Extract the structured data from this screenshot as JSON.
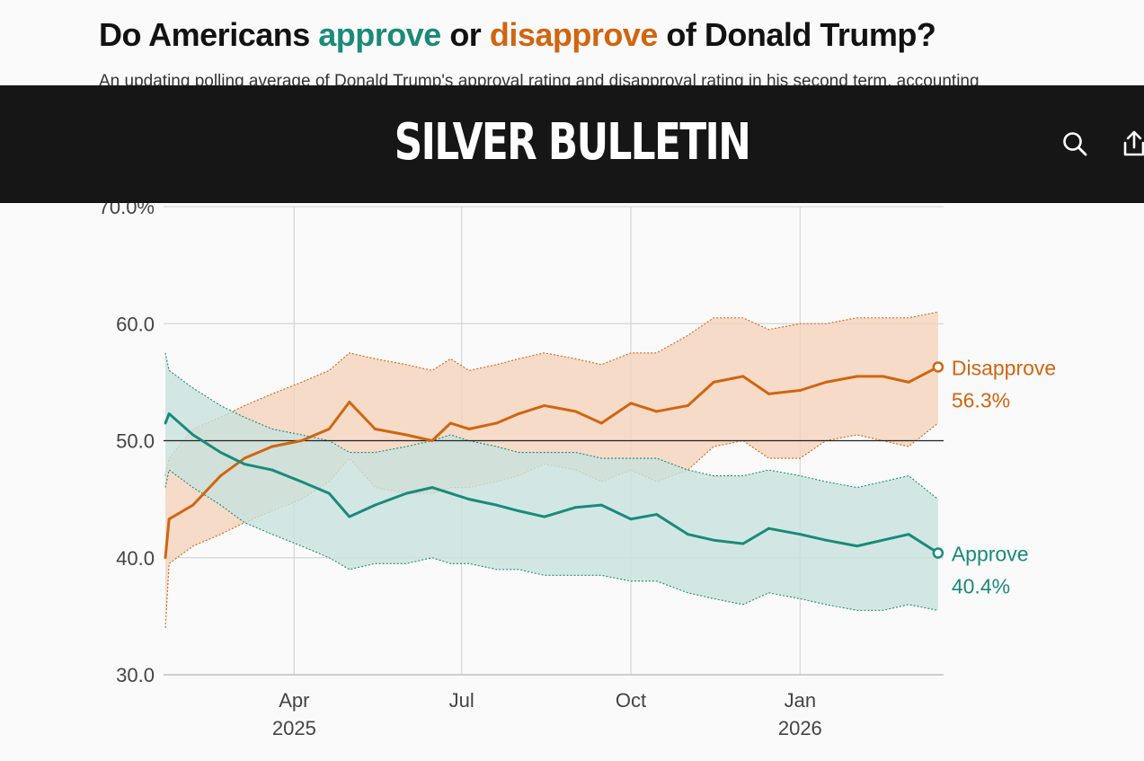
{
  "header": {
    "title_prefix": "Do Americans ",
    "title_approve": "approve",
    "title_mid": " or ",
    "title_disapprove": "disapprove",
    "title_suffix": " of Donald Trump?",
    "subtitle": "An updating polling average of Donald Trump's approval rating and disapproval rating in his second term, accounting"
  },
  "topbar": {
    "brand": "SILVER BULLETIN",
    "search_icon": "search-icon",
    "share_icon": "share-icon"
  },
  "colors": {
    "approve": "#1a8a7a",
    "disapprove": "#d1650f",
    "approve_band": "#c8e2dd",
    "disapprove_band": "#f4d3bb",
    "topbar": "#161616"
  },
  "chart_data": {
    "type": "line",
    "y_ticks": [
      "70.0%",
      "60.0",
      "50.0",
      "40.0",
      "30.0"
    ],
    "y_tick_values": [
      70,
      60,
      50,
      40,
      30
    ],
    "ylim": [
      30,
      70
    ],
    "x_range": [
      "2025-01-20",
      "2026-03-20"
    ],
    "x_ticks": [
      {
        "date": "2025-04-01",
        "label": "Apr",
        "sublabel": "2025"
      },
      {
        "date": "2025-07-01",
        "label": "Jul",
        "sublabel": ""
      },
      {
        "date": "2025-10-01",
        "label": "Oct",
        "sublabel": ""
      },
      {
        "date": "2026-01-01",
        "label": "Jan",
        "sublabel": "2026"
      }
    ],
    "reference_line": 50,
    "grid": true,
    "series": [
      {
        "name": "Disapprove",
        "latest_label": "56.3%",
        "dates": [
          "2025-01-21",
          "2025-01-23",
          "2025-02-05",
          "2025-02-20",
          "2025-03-05",
          "2025-03-20",
          "2025-04-05",
          "2025-04-20",
          "2025-05-01",
          "2025-05-15",
          "2025-06-01",
          "2025-06-15",
          "2025-06-25",
          "2025-07-05",
          "2025-07-20",
          "2025-08-01",
          "2025-08-15",
          "2025-09-01",
          "2025-09-15",
          "2025-10-01",
          "2025-10-15",
          "2025-11-01",
          "2025-11-15",
          "2025-12-01",
          "2025-12-15",
          "2026-01-01",
          "2026-01-15",
          "2026-02-01",
          "2026-02-15",
          "2026-03-01",
          "2026-03-17"
        ],
        "values": [
          40.0,
          43.3,
          44.5,
          47.0,
          48.5,
          49.5,
          50.0,
          51.0,
          53.3,
          51.0,
          50.5,
          50.0,
          51.5,
          51.0,
          51.5,
          52.3,
          53.0,
          52.5,
          51.5,
          53.2,
          52.5,
          53.0,
          55.0,
          55.5,
          54.0,
          54.3,
          55.0,
          55.5,
          55.5,
          55.0,
          56.3
        ],
        "upper": [
          47.0,
          48.5,
          51.0,
          52.0,
          53.0,
          54.0,
          55.0,
          56.0,
          57.5,
          57.0,
          56.5,
          56.0,
          57.0,
          56.0,
          56.5,
          57.0,
          57.5,
          57.0,
          56.5,
          57.5,
          57.5,
          59.0,
          60.5,
          60.5,
          59.5,
          60.0,
          60.0,
          60.5,
          60.5,
          60.5,
          61.0
        ],
        "lower": [
          34.0,
          39.5,
          41.0,
          42.0,
          43.0,
          44.0,
          45.0,
          46.5,
          48.5,
          46.0,
          45.5,
          45.5,
          46.0,
          46.0,
          46.5,
          47.0,
          48.0,
          47.5,
          46.5,
          47.5,
          46.5,
          47.5,
          49.5,
          50.0,
          48.5,
          48.5,
          50.0,
          50.5,
          50.0,
          49.5,
          51.5
        ]
      },
      {
        "name": "Approve",
        "latest_label": "40.4%",
        "dates": [
          "2025-01-21",
          "2025-01-23",
          "2025-02-05",
          "2025-02-20",
          "2025-03-05",
          "2025-03-20",
          "2025-04-05",
          "2025-04-20",
          "2025-05-01",
          "2025-05-15",
          "2025-06-01",
          "2025-06-15",
          "2025-06-25",
          "2025-07-05",
          "2025-07-20",
          "2025-08-01",
          "2025-08-15",
          "2025-09-01",
          "2025-09-15",
          "2025-10-01",
          "2025-10-15",
          "2025-11-01",
          "2025-11-15",
          "2025-12-01",
          "2025-12-15",
          "2026-01-01",
          "2026-01-15",
          "2026-02-01",
          "2026-02-15",
          "2026-03-01",
          "2026-03-17"
        ],
        "values": [
          51.5,
          52.3,
          50.5,
          49.0,
          48.0,
          47.5,
          46.5,
          45.5,
          43.5,
          44.5,
          45.5,
          46.0,
          45.5,
          45.0,
          44.5,
          44.0,
          43.5,
          44.3,
          44.5,
          43.3,
          43.7,
          42.0,
          41.5,
          41.2,
          42.5,
          42.0,
          41.5,
          41.0,
          41.5,
          42.0,
          40.4
        ],
        "upper": [
          57.5,
          56.0,
          54.5,
          53.0,
          52.0,
          51.0,
          50.5,
          50.0,
          49.0,
          49.0,
          49.5,
          50.0,
          50.5,
          50.0,
          49.5,
          49.0,
          49.0,
          49.0,
          48.5,
          48.5,
          48.5,
          47.5,
          47.0,
          47.0,
          47.5,
          47.0,
          46.5,
          46.0,
          46.5,
          47.0,
          45.0
        ],
        "lower": [
          46.0,
          47.5,
          46.0,
          44.5,
          43.0,
          42.0,
          41.0,
          40.0,
          39.0,
          39.5,
          39.5,
          40.0,
          39.5,
          39.5,
          39.0,
          39.0,
          38.5,
          38.5,
          38.5,
          38.0,
          38.0,
          37.0,
          36.5,
          36.0,
          37.0,
          36.5,
          36.0,
          35.5,
          35.5,
          36.0,
          35.5
        ]
      }
    ]
  }
}
